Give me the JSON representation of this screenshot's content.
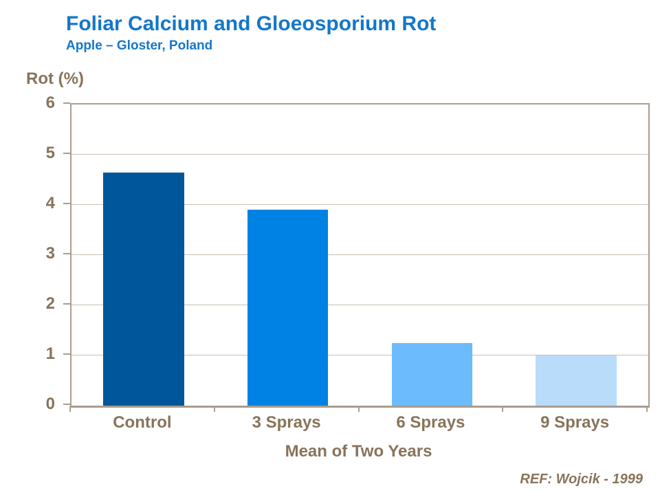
{
  "header": {
    "title": "Foliar Calcium and Gloeosporium Rot",
    "subtitle": "Apple – Gloster, Poland"
  },
  "footer": {
    "reference": "REF: Wojcik - 1999"
  },
  "colors": {
    "title_blue": "#1477c8",
    "axis_text_brown": "#87745a",
    "frame_tan": "#a89d90",
    "gridline_tan": "#c9beb2",
    "background": "#ffffff"
  },
  "chart_data": {
    "type": "bar",
    "categories": [
      "Control",
      "3 Sprays",
      "6 Sprays",
      "9 Sprays"
    ],
    "values": [
      4.65,
      3.9,
      1.25,
      1.0
    ],
    "bar_colors": [
      "#00569b",
      "#0082e4",
      "#6cbbfc",
      "#b9dcfb"
    ],
    "title": "Foliar Calcium and Gloeosporium Rot",
    "subtitle": "Apple – Gloster, Poland",
    "xlabel": "Mean of Two Years",
    "ylabel": "Rot (%)",
    "ylim": [
      0,
      6
    ],
    "yticks": [
      0,
      1,
      2,
      3,
      4,
      5,
      6
    ],
    "grid": true,
    "legend": "none",
    "annotation": "REF: Wojcik - 1999"
  }
}
